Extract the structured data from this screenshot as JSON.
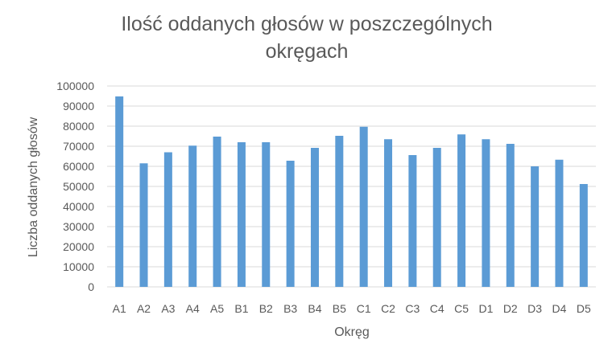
{
  "chart_data": {
    "type": "bar",
    "title_lines": [
      "Ilość oddanych głosów w poszczególnych",
      "okręgach"
    ],
    "xlabel": "Okręg",
    "ylabel": "Liczba oddanych głosów",
    "categories": [
      "A1",
      "A2",
      "A3",
      "A4",
      "A5",
      "B1",
      "B2",
      "B3",
      "B4",
      "B5",
      "C1",
      "C2",
      "C3",
      "C4",
      "C5",
      "D1",
      "D2",
      "D3",
      "D4",
      "D5"
    ],
    "values": [
      94800,
      61500,
      67000,
      70300,
      74800,
      72000,
      72000,
      62800,
      69200,
      75200,
      79700,
      73500,
      65600,
      69200,
      75900,
      73500,
      71200,
      60000,
      63300,
      51200
    ],
    "y_ticks": [
      "0",
      "10000",
      "20000",
      "30000",
      "40000",
      "50000",
      "60000",
      "70000",
      "80000",
      "90000",
      "100000"
    ],
    "ylim": [
      0,
      100000
    ],
    "grid": true,
    "legend": "none",
    "colors": {
      "bar": "#5B9BD5",
      "grid": "#D9D9D9",
      "text": "#595959"
    }
  }
}
